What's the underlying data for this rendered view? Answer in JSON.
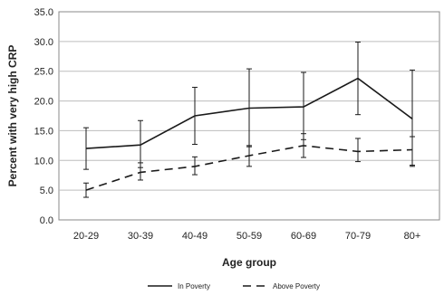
{
  "chart_data": {
    "type": "line",
    "title": "",
    "xlabel": "Age group",
    "ylabel": "Percent with very high CRP",
    "categories": [
      "20-29",
      "30-39",
      "40-49",
      "50-59",
      "60-69",
      "70-79",
      "80+"
    ],
    "ylim": [
      0,
      35
    ],
    "yticks": [
      "0.0",
      "5.0",
      "10.0",
      "15.0",
      "20.0",
      "25.0",
      "30.0",
      "35.0"
    ],
    "grid": "horizontal",
    "legend_placement": "bottom",
    "series": [
      {
        "name": "In Poverty",
        "line_style": "solid",
        "color": "#1a1a1a",
        "values": [
          12.0,
          12.6,
          17.5,
          18.8,
          19.0,
          23.8,
          17.0
        ],
        "error_low": [
          8.5,
          8.8,
          12.7,
          12.3,
          13.5,
          17.7,
          9.0
        ],
        "error_high": [
          15.5,
          16.7,
          22.3,
          25.4,
          24.8,
          29.9,
          25.2
        ]
      },
      {
        "name": "Above Poverty",
        "line_style": "dashed",
        "color": "#1a1a1a",
        "values": [
          5.0,
          8.0,
          9.0,
          10.8,
          12.5,
          11.5,
          11.8
        ],
        "error_low": [
          3.8,
          6.7,
          7.6,
          9.0,
          10.5,
          9.8,
          9.2
        ],
        "error_high": [
          6.2,
          9.6,
          10.6,
          12.5,
          14.5,
          13.7,
          14.0
        ]
      }
    ]
  }
}
